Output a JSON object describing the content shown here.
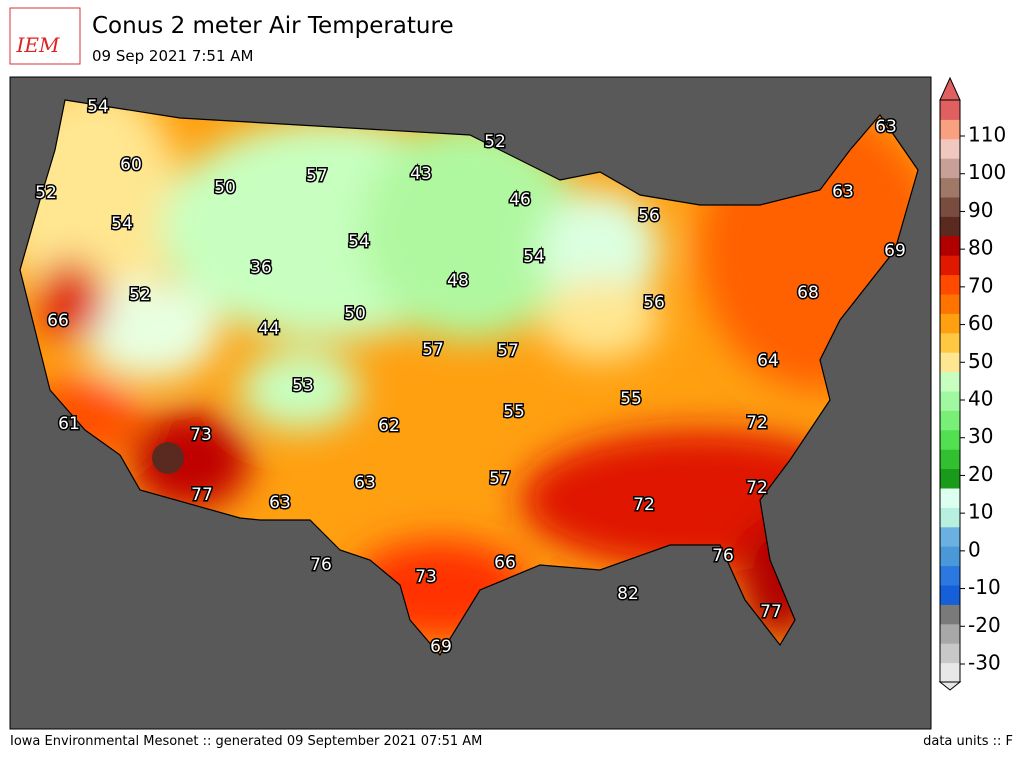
{
  "header": {
    "logo": "IEM",
    "title": "Conus 2 meter Air Temperature",
    "subtitle": "09 Sep 2021 7:51 AM"
  },
  "map": {
    "labels": [
      54,
      60,
      52,
      54,
      50,
      57,
      43,
      52,
      46,
      56,
      63,
      63,
      69,
      54,
      36,
      48,
      54,
      52,
      66,
      50,
      44,
      57,
      57,
      56,
      68,
      64,
      53,
      55,
      55,
      61,
      73,
      62,
      72,
      77,
      63,
      63,
      57,
      72,
      72,
      76,
      73,
      66,
      76,
      82,
      77,
      69
    ]
  },
  "colorbar": {
    "ticks": [
      -30,
      -20,
      -10,
      0,
      10,
      20,
      30,
      40,
      50,
      60,
      70,
      80,
      90,
      100,
      110
    ],
    "colors": [
      "#e8e8e8",
      "#c8c8c8",
      "#a8a8a8",
      "#7a7a7a",
      "#1560d8",
      "#2a78e0",
      "#4a98d8",
      "#6ab0e0",
      "#b8f0e0",
      "#dcfff0",
      "#1a9a1a",
      "#30c030",
      "#50e050",
      "#78f078",
      "#a0f8a0",
      "#c8ffc0",
      "#ffe690",
      "#ffc840",
      "#ffa010",
      "#ff7400",
      "#ff4a00",
      "#e01800",
      "#b00000",
      "#5a2a20",
      "#7a4c40",
      "#a07868",
      "#c8a098",
      "#f0c8c0",
      "#f8a080",
      "#e06060"
    ]
  },
  "footer": {
    "left": "Iowa Environmental Mesonet :: generated 09 September 2021 07:51 AM",
    "right": "data units :: F"
  }
}
